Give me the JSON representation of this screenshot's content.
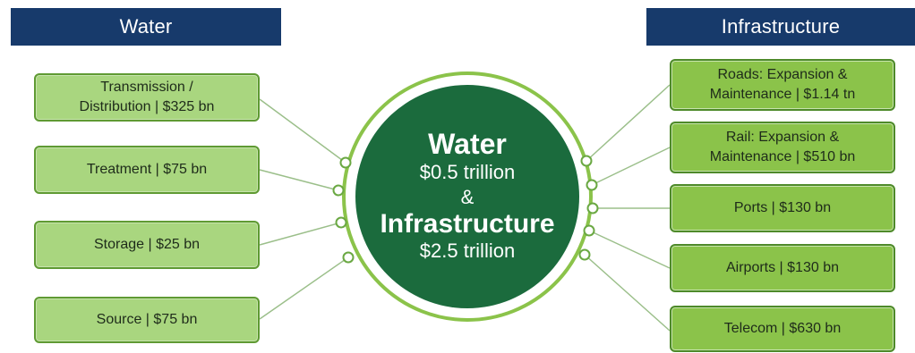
{
  "headers": {
    "left": "Water",
    "right": "Infrastructure"
  },
  "center": {
    "title1": "Water",
    "value1": "$0.5 trillion",
    "amp": "&",
    "title2": "Infrastructure",
    "value2": "$2.5 trillion"
  },
  "water_items": [
    {
      "line1": "Transmission /",
      "line2": "Distribution | $325 bn"
    },
    {
      "line1": "Treatment | $75 bn",
      "line2": ""
    },
    {
      "line1": "Storage | $25 bn",
      "line2": ""
    },
    {
      "line1": "Source | $75 bn",
      "line2": ""
    }
  ],
  "infra_items": [
    {
      "line1": "Roads: Expansion &",
      "line2": "Maintenance | $1.14 tn"
    },
    {
      "line1": "Rail: Expansion &",
      "line2": "Maintenance | $510 bn"
    },
    {
      "line1": "Ports | $130 bn",
      "line2": ""
    },
    {
      "line1": "Airports | $130 bn",
      "line2": ""
    },
    {
      "line1": "Telecom | $630 bn",
      "line2": ""
    }
  ],
  "colors": {
    "header": "#173a6b",
    "circle": "#1b6b3d",
    "ring": "#8bc34a",
    "box_left": "#a9d67f",
    "box_right": "#8bc34a"
  }
}
